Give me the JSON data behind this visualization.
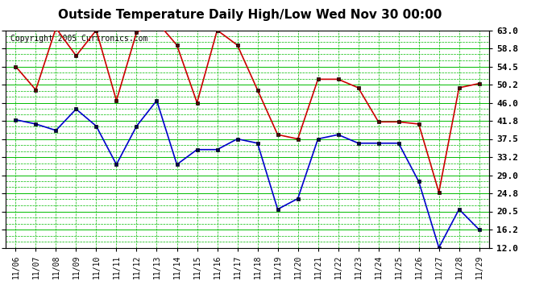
{
  "title": "Outside Temperature Daily High/Low Wed Nov 30 00:00",
  "copyright": "Copyright 2005 Curtronics.com",
  "x_labels": [
    "11/06",
    "11/07",
    "11/08",
    "11/09",
    "11/10",
    "11/11",
    "11/12",
    "11/13",
    "11/14",
    "11/15",
    "11/16",
    "11/17",
    "11/18",
    "11/19",
    "11/20",
    "11/21",
    "11/22",
    "11/23",
    "11/24",
    "11/25",
    "11/26",
    "11/27",
    "11/28",
    "11/29"
  ],
  "high_values": [
    54.5,
    49.0,
    63.5,
    57.0,
    63.0,
    46.5,
    62.5,
    65.0,
    59.5,
    46.0,
    63.0,
    59.5,
    49.0,
    38.5,
    37.5,
    51.5,
    51.5,
    49.5,
    41.5,
    41.5,
    41.0,
    25.0,
    49.5,
    50.5
  ],
  "low_values": [
    42.0,
    41.0,
    39.5,
    44.5,
    40.5,
    31.5,
    40.5,
    46.5,
    31.5,
    35.0,
    35.0,
    37.5,
    36.5,
    21.0,
    23.5,
    37.5,
    38.5,
    36.5,
    36.5,
    36.5,
    27.5,
    12.0,
    21.0,
    16.2
  ],
  "high_color": "#cc0000",
  "low_color": "#0000cc",
  "bg_color": "#ffffff",
  "plot_bg_color": "#ffffff",
  "grid_solid_color": "#00bb00",
  "grid_dash_color": "#00bb00",
  "title_fontsize": 11,
  "copyright_fontsize": 7,
  "y_min": 12.0,
  "y_max": 63.0,
  "y_ticks": [
    12.0,
    16.2,
    20.5,
    24.8,
    29.0,
    33.2,
    37.5,
    41.8,
    46.0,
    50.2,
    54.5,
    58.8,
    63.0
  ],
  "y_tick_labels": [
    "12.0",
    "16.2",
    "20.5",
    "24.8",
    "29.0",
    "33.2",
    "37.5",
    "41.8",
    "46.0",
    "50.2",
    "54.5",
    "58.8",
    "63.0"
  ]
}
